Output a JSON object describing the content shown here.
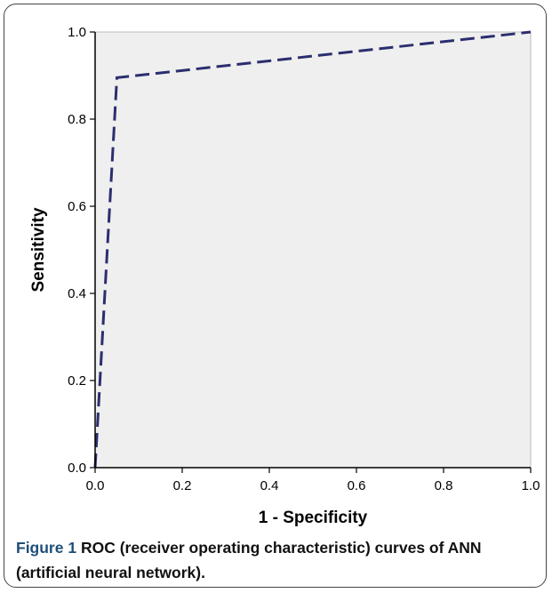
{
  "figure": {
    "label": "Figure 1",
    "caption": "ROC (receiver operating characteristic) curves of ANN (artificial neural network)."
  },
  "colors": {
    "plot_background": "#efefef",
    "curve": "#2b2e6e",
    "axis": "#000000"
  },
  "chart_data": {
    "type": "line",
    "xlabel": "1 - Specificity",
    "ylabel": "Sensitivity",
    "xlim": [
      0.0,
      1.0
    ],
    "ylim": [
      0.0,
      1.0
    ],
    "x_ticks": [
      "0.0",
      "0.2",
      "0.4",
      "0.6",
      "0.8",
      "1.0"
    ],
    "y_ticks": [
      "0.0",
      "0.2",
      "0.4",
      "0.6",
      "0.8",
      "1.0"
    ],
    "grid": false,
    "series": [
      {
        "style": "dashed",
        "x": [
          0.0,
          0.05,
          1.0
        ],
        "y": [
          0.0,
          0.895,
          1.0
        ]
      }
    ]
  }
}
